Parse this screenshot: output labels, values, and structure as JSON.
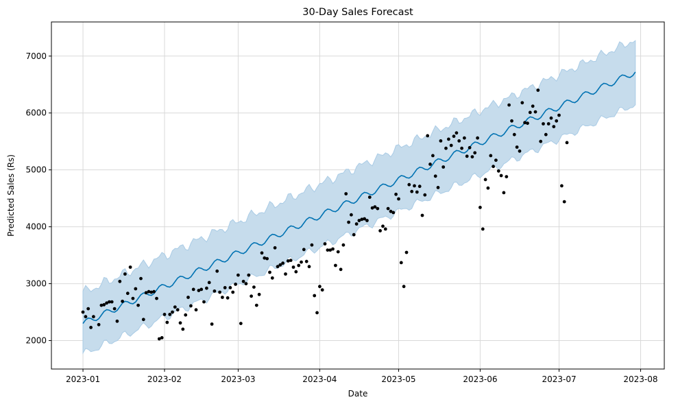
{
  "chart_data": {
    "type": "line",
    "title": "30-Day Sales Forecast",
    "xlabel": "Date",
    "ylabel": "Predicted Sales (Rs)",
    "x_range": [
      "2022-12-20",
      "2023-08-10"
    ],
    "ylim": [
      1500,
      7600
    ],
    "grid": true,
    "x_ticks": [
      "2023-01-01",
      "2023-02-01",
      "2023-03-01",
      "2023-04-01",
      "2023-05-01",
      "2023-06-01",
      "2023-07-01",
      "2023-08-01"
    ],
    "x_tick_labels": [
      "2023-01",
      "2023-02",
      "2023-03",
      "2023-04",
      "2023-05",
      "2023-06",
      "2023-07",
      "2023-08"
    ],
    "y_ticks": [
      2000,
      3000,
      4000,
      5000,
      6000,
      7000
    ],
    "colors": {
      "forecast": "#0072B2",
      "interval": "#c6dcec",
      "interval_edge": "#a9cbe5",
      "observed": "#000000"
    },
    "forecast": {
      "start": "2023-01-01",
      "end": "2023-07-30",
      "start_value": 2300,
      "end_value": 6720,
      "curvature": 3e-05,
      "weekly_amplitude": 55,
      "interval_half_width": 540
    },
    "series": [
      {
        "name": "",
        "kind": "observed",
        "points": [
          [
            "2023-01-01",
            2500
          ],
          [
            "2023-01-02",
            2420
          ],
          [
            "2023-01-03",
            2560
          ],
          [
            "2023-01-04",
            2230
          ],
          [
            "2023-01-05",
            2420
          ],
          [
            "2023-01-07",
            2280
          ],
          [
            "2023-01-08",
            2620
          ],
          [
            "2023-01-09",
            2630
          ],
          [
            "2023-01-10",
            2660
          ],
          [
            "2023-01-11",
            2680
          ],
          [
            "2023-01-12",
            2680
          ],
          [
            "2023-01-13",
            2560
          ],
          [
            "2023-01-14",
            2340
          ],
          [
            "2023-01-15",
            3040
          ],
          [
            "2023-01-16",
            2690
          ],
          [
            "2023-01-17",
            3170
          ],
          [
            "2023-01-18",
            2830
          ],
          [
            "2023-01-19",
            3290
          ],
          [
            "2023-01-20",
            2740
          ],
          [
            "2023-01-21",
            2910
          ],
          [
            "2023-01-22",
            2620
          ],
          [
            "2023-01-23",
            3090
          ],
          [
            "2023-01-24",
            2370
          ],
          [
            "2023-01-25",
            2840
          ],
          [
            "2023-01-26",
            2860
          ],
          [
            "2023-01-27",
            2850
          ],
          [
            "2023-01-28",
            2860
          ],
          [
            "2023-01-29",
            2740
          ],
          [
            "2023-01-30",
            2030
          ],
          [
            "2023-01-31",
            2050
          ],
          [
            "2023-02-01",
            2460
          ],
          [
            "2023-02-02",
            2320
          ],
          [
            "2023-02-03",
            2460
          ],
          [
            "2023-02-04",
            2500
          ],
          [
            "2023-02-05",
            2590
          ],
          [
            "2023-02-06",
            2540
          ],
          [
            "2023-02-07",
            2310
          ],
          [
            "2023-02-08",
            2200
          ],
          [
            "2023-02-09",
            2450
          ],
          [
            "2023-02-10",
            2760
          ],
          [
            "2023-02-11",
            2610
          ],
          [
            "2023-02-12",
            2900
          ],
          [
            "2023-02-13",
            2540
          ],
          [
            "2023-02-14",
            2880
          ],
          [
            "2023-02-15",
            2900
          ],
          [
            "2023-02-16",
            2680
          ],
          [
            "2023-02-17",
            2920
          ],
          [
            "2023-02-18",
            3020
          ],
          [
            "2023-02-19",
            2290
          ],
          [
            "2023-02-20",
            2870
          ],
          [
            "2023-02-21",
            3220
          ],
          [
            "2023-02-22",
            2850
          ],
          [
            "2023-02-23",
            2760
          ],
          [
            "2023-02-24",
            2930
          ],
          [
            "2023-02-25",
            2750
          ],
          [
            "2023-02-26",
            2930
          ],
          [
            "2023-02-27",
            2850
          ],
          [
            "2023-02-28",
            2990
          ],
          [
            "2023-03-01",
            3150
          ],
          [
            "2023-03-02",
            2300
          ],
          [
            "2023-03-03",
            3040
          ],
          [
            "2023-03-04",
            3000
          ],
          [
            "2023-03-05",
            3150
          ],
          [
            "2023-03-06",
            2780
          ],
          [
            "2023-03-07",
            2940
          ],
          [
            "2023-03-08",
            2620
          ],
          [
            "2023-03-09",
            2810
          ],
          [
            "2023-03-10",
            3540
          ],
          [
            "2023-03-11",
            3450
          ],
          [
            "2023-03-12",
            3440
          ],
          [
            "2023-03-13",
            3200
          ],
          [
            "2023-03-14",
            3100
          ],
          [
            "2023-03-15",
            3630
          ],
          [
            "2023-03-16",
            3300
          ],
          [
            "2023-03-17",
            3330
          ],
          [
            "2023-03-18",
            3360
          ],
          [
            "2023-03-19",
            3170
          ],
          [
            "2023-03-20",
            3400
          ],
          [
            "2023-03-21",
            3410
          ],
          [
            "2023-03-22",
            3290
          ],
          [
            "2023-03-23",
            3210
          ],
          [
            "2023-03-24",
            3320
          ],
          [
            "2023-03-25",
            3380
          ],
          [
            "2023-03-26",
            3600
          ],
          [
            "2023-03-27",
            3390
          ],
          [
            "2023-03-28",
            3300
          ],
          [
            "2023-03-29",
            3680
          ],
          [
            "2023-03-30",
            2790
          ],
          [
            "2023-03-31",
            2490
          ],
          [
            "2023-04-01",
            2950
          ],
          [
            "2023-04-02",
            2890
          ],
          [
            "2023-04-03",
            3700
          ],
          [
            "2023-04-04",
            3590
          ],
          [
            "2023-04-05",
            3590
          ],
          [
            "2023-04-06",
            3610
          ],
          [
            "2023-04-07",
            3320
          ],
          [
            "2023-04-08",
            3560
          ],
          [
            "2023-04-09",
            3250
          ],
          [
            "2023-04-10",
            3680
          ],
          [
            "2023-04-11",
            4580
          ],
          [
            "2023-04-12",
            4080
          ],
          [
            "2023-04-13",
            4210
          ],
          [
            "2023-04-14",
            3860
          ],
          [
            "2023-04-15",
            4050
          ],
          [
            "2023-04-16",
            4110
          ],
          [
            "2023-04-17",
            4130
          ],
          [
            "2023-04-18",
            4140
          ],
          [
            "2023-04-19",
            4110
          ],
          [
            "2023-04-20",
            4520
          ],
          [
            "2023-04-21",
            4330
          ],
          [
            "2023-04-22",
            4350
          ],
          [
            "2023-04-23",
            4320
          ],
          [
            "2023-04-24",
            3930
          ],
          [
            "2023-04-25",
            4010
          ],
          [
            "2023-04-26",
            3960
          ],
          [
            "2023-04-27",
            4320
          ],
          [
            "2023-04-28",
            4270
          ],
          [
            "2023-04-29",
            4250
          ],
          [
            "2023-04-30",
            4570
          ],
          [
            "2023-05-01",
            4490
          ],
          [
            "2023-05-02",
            3370
          ],
          [
            "2023-05-03",
            2950
          ],
          [
            "2023-05-04",
            3550
          ],
          [
            "2023-05-05",
            4740
          ],
          [
            "2023-05-06",
            4620
          ],
          [
            "2023-05-07",
            4720
          ],
          [
            "2023-05-08",
            4610
          ],
          [
            "2023-05-09",
            4710
          ],
          [
            "2023-05-10",
            4200
          ],
          [
            "2023-05-11",
            4560
          ],
          [
            "2023-05-12",
            5600
          ],
          [
            "2023-05-13",
            5100
          ],
          [
            "2023-05-14",
            5250
          ],
          [
            "2023-05-15",
            4890
          ],
          [
            "2023-05-16",
            4690
          ],
          [
            "2023-05-17",
            5510
          ],
          [
            "2023-05-18",
            5050
          ],
          [
            "2023-05-19",
            5380
          ],
          [
            "2023-05-20",
            5540
          ],
          [
            "2023-05-21",
            5430
          ],
          [
            "2023-05-22",
            5590
          ],
          [
            "2023-05-23",
            5650
          ],
          [
            "2023-05-24",
            5510
          ],
          [
            "2023-05-25",
            5380
          ],
          [
            "2023-05-26",
            5560
          ],
          [
            "2023-05-27",
            5240
          ],
          [
            "2023-05-28",
            5390
          ],
          [
            "2023-05-29",
            5230
          ],
          [
            "2023-05-30",
            5300
          ],
          [
            "2023-05-31",
            5560
          ],
          [
            "2023-06-01",
            4340
          ],
          [
            "2023-06-02",
            3960
          ],
          [
            "2023-06-03",
            4830
          ],
          [
            "2023-06-04",
            4680
          ],
          [
            "2023-06-05",
            5250
          ],
          [
            "2023-06-06",
            5060
          ],
          [
            "2023-06-07",
            5170
          ],
          [
            "2023-06-08",
            4980
          ],
          [
            "2023-06-09",
            4900
          ],
          [
            "2023-06-10",
            4600
          ],
          [
            "2023-06-11",
            4880
          ],
          [
            "2023-06-12",
            6140
          ],
          [
            "2023-06-13",
            5860
          ],
          [
            "2023-06-14",
            5620
          ],
          [
            "2023-06-15",
            5400
          ],
          [
            "2023-06-16",
            5330
          ],
          [
            "2023-06-17",
            6180
          ],
          [
            "2023-06-18",
            5830
          ],
          [
            "2023-06-19",
            5820
          ],
          [
            "2023-06-20",
            6010
          ],
          [
            "2023-06-21",
            6120
          ],
          [
            "2023-06-22",
            6020
          ],
          [
            "2023-06-23",
            6400
          ],
          [
            "2023-06-24",
            5500
          ],
          [
            "2023-06-25",
            5810
          ],
          [
            "2023-06-26",
            5620
          ],
          [
            "2023-06-27",
            5810
          ],
          [
            "2023-06-28",
            5910
          ],
          [
            "2023-06-29",
            5760
          ],
          [
            "2023-06-30",
            5860
          ],
          [
            "2023-07-01",
            5960
          ],
          [
            "2023-07-02",
            4720
          ],
          [
            "2023-07-03",
            4440
          ],
          [
            "2023-07-04",
            5480
          ]
        ]
      }
    ]
  }
}
